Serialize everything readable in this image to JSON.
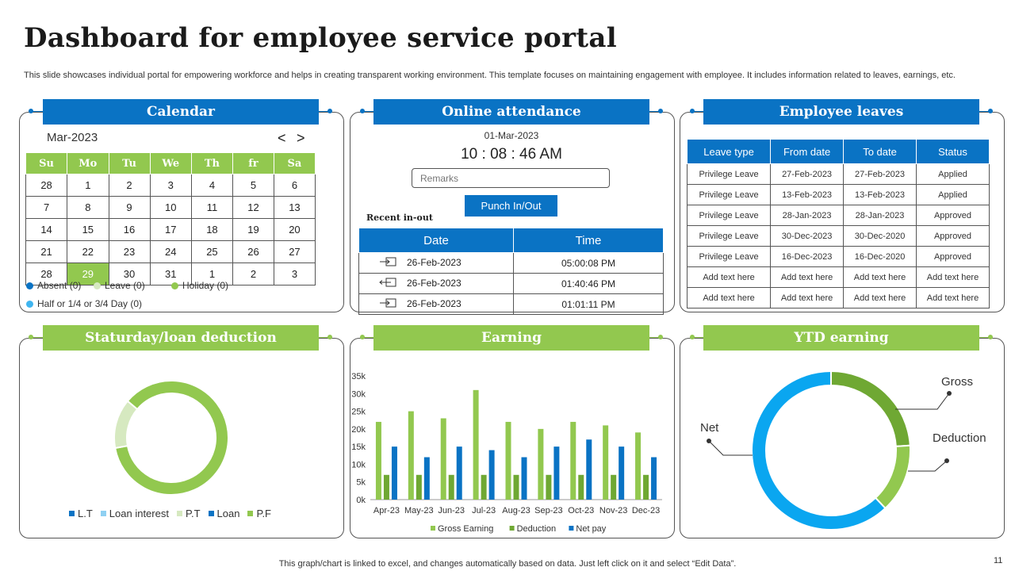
{
  "header": {
    "title": "Dashboard for employee service portal",
    "subtitle": "This slide showcases individual portal for empowering workforce and helps in creating transparent working environment. This template focuses on maintaining engagement with employee. It includes information related to leaves, earnings, etc."
  },
  "calendar": {
    "banner": "Calendar",
    "month": "Mar-2023",
    "prev": "<",
    "next": ">",
    "days": [
      "Su",
      "Mo",
      "Tu",
      "We",
      "Th",
      "fr",
      "Sa"
    ],
    "weeks": [
      [
        "28",
        "1",
        "2",
        "3",
        "4",
        "5",
        "6"
      ],
      [
        "7",
        "8",
        "9",
        "10",
        "11",
        "12",
        "13"
      ],
      [
        "14",
        "15",
        "16",
        "17",
        "18",
        "19",
        "20"
      ],
      [
        "21",
        "22",
        "23",
        "24",
        "25",
        "26",
        "27"
      ],
      [
        "28",
        "29",
        "30",
        "31",
        "1",
        "2",
        "3"
      ]
    ],
    "legend": {
      "absent": "Absent (0)",
      "leave": "Leave  (0)",
      "holiday": "Holiday (0)",
      "half": "Half or 1/4 or 3/4 Day (0)"
    },
    "colors": {
      "absent": "#0a73c4",
      "leave": "#d6e9c0",
      "holiday": "#92c84f",
      "half": "#3fb5f0"
    }
  },
  "attendance": {
    "banner": "Online attendance",
    "date": "01-Mar-2023",
    "time": "10 : 08 : 46 AM",
    "remarks_placeholder": "Remarks",
    "punch_button": "Punch In/Out",
    "recent_label": "Recent in-out",
    "headers": [
      "Date",
      "Time"
    ],
    "rows": [
      {
        "icon": "sign-in-icon",
        "date": "26-Feb-2023",
        "time": "05:00:08 PM"
      },
      {
        "icon": "sign-out-icon",
        "date": "26-Feb-2023",
        "time": "01:40:46 PM"
      },
      {
        "icon": "sign-in-icon",
        "date": "26-Feb-2023",
        "time": "01:01:11 PM"
      }
    ]
  },
  "leaves": {
    "banner": "Employee leaves",
    "headers": [
      "Leave type",
      "From date",
      "To date",
      "Status"
    ],
    "rows": [
      [
        "Privilege Leave",
        "27-Feb-2023",
        "27-Feb-2023",
        "Applied"
      ],
      [
        "Privilege Leave",
        "13-Feb-2023",
        "13-Feb-2023",
        "Applied"
      ],
      [
        "Privilege Leave",
        "28-Jan-2023",
        "28-Jan-2023",
        "Approved"
      ],
      [
        "Privilege Leave",
        "30-Dec-2023",
        "30-Dec-2020",
        "Approved"
      ],
      [
        "Privilege Leave",
        "16-Dec-2023",
        "16-Dec-2020",
        "Approved"
      ],
      [
        "Add text here",
        "Add text here",
        "Add text here",
        "Add text here"
      ],
      [
        "Add text here",
        "Add text here",
        "Add text here",
        "Add text here"
      ]
    ]
  },
  "deduction": {
    "banner": "Staturday/loan deduction",
    "legend": [
      "L.T",
      "Loan interest",
      "P.T",
      "Loan",
      "P.F"
    ],
    "legend_colors": [
      "#0a73c4",
      "#8fd0f2",
      "#d6e9c0",
      "#0a73c4",
      "#92c84f"
    ]
  },
  "earning": {
    "banner": "Earning"
  },
  "ytd": {
    "banner": "YTD earning",
    "labels": {
      "gross": "Gross",
      "deduction": "Deduction",
      "net": "Net"
    }
  },
  "footer": {
    "note": "This graph/chart is linked to excel,  and changes automatically based on data. Just left click on it and select “Edit Data”.",
    "page": "11"
  },
  "chart_data": [
    {
      "type": "bar",
      "categories": [
        "Apr-23",
        "May-23",
        "Jun-23",
        "Jul-23",
        "Aug-23",
        "Sep-23",
        "Oct-23",
        "Nov-23",
        "Dec-23"
      ],
      "ylim": [
        0,
        35000
      ],
      "yticks": [
        "0k",
        "5k",
        "10k",
        "15k",
        "20k",
        "25k",
        "30k",
        "35k"
      ],
      "series": [
        {
          "name": "Gross Earning",
          "color": "#92c84f",
          "values": [
            22000,
            25000,
            23000,
            31000,
            22000,
            20000,
            22000,
            21000,
            19000
          ]
        },
        {
          "name": "Deduction",
          "color": "#6fa833",
          "values": [
            7000,
            7000,
            7000,
            7000,
            7000,
            7000,
            7000,
            7000,
            7000
          ]
        },
        {
          "name": "Net pay",
          "color": "#0a73c4",
          "values": [
            15000,
            12000,
            15000,
            14000,
            12000,
            15000,
            17000,
            15000,
            12000
          ]
        }
      ]
    },
    {
      "type": "pie",
      "donut": true,
      "slices": [
        {
          "value": 86,
          "color": "#92c84f"
        },
        {
          "value": 14,
          "color": "#d6e9c0"
        }
      ]
    },
    {
      "type": "pie",
      "donut": true,
      "slices": [
        {
          "name": "Gross",
          "value": 24,
          "color": "#6fa833"
        },
        {
          "name": "Deduction",
          "value": 14,
          "color": "#92c84f"
        },
        {
          "name": "Net",
          "value": 62,
          "color": "#0aa6f0"
        }
      ]
    }
  ]
}
